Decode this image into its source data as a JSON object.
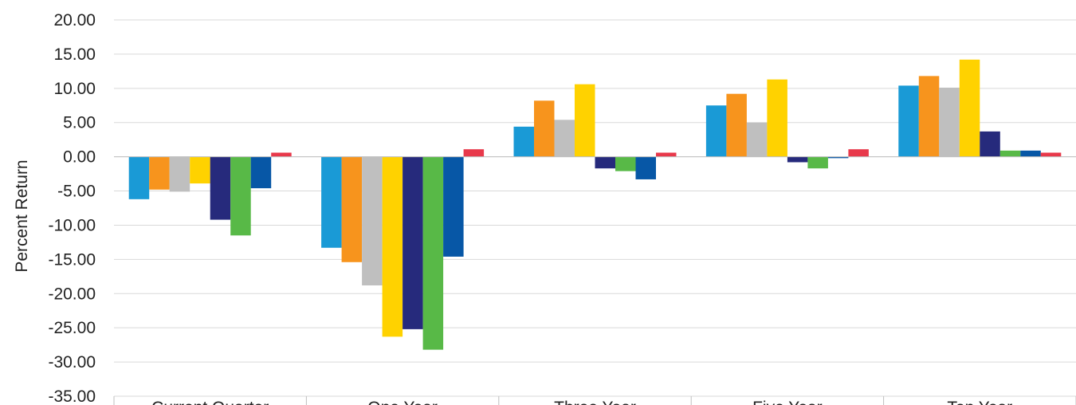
{
  "chart_data": {
    "type": "bar",
    "ylabel": "Percent Return",
    "ylim": [
      -35,
      20
    ],
    "ytick_step": 5,
    "ytick_decimals": 2,
    "grid": true,
    "categories": [
      "Current Quarter",
      "One Year",
      "Three Year",
      "Five Year",
      "Ten Year"
    ],
    "series": [
      {
        "color": "#1a9ad6",
        "values": [
          -6.2,
          -13.3,
          4.4,
          7.5,
          10.4
        ]
      },
      {
        "color": "#f7941d",
        "values": [
          -4.8,
          -15.4,
          8.2,
          9.2,
          11.8
        ]
      },
      {
        "color": "#bfbfbf",
        "values": [
          -5.1,
          -18.8,
          5.4,
          5.0,
          10.1
        ]
      },
      {
        "color": "#ffd200",
        "values": [
          -3.9,
          -26.3,
          10.6,
          11.3,
          14.2
        ]
      },
      {
        "color": "#262a7c",
        "values": [
          -9.2,
          -25.2,
          -1.7,
          -0.8,
          3.7
        ]
      },
      {
        "color": "#58b947",
        "values": [
          -11.5,
          -28.2,
          -2.1,
          -1.7,
          0.9
        ]
      },
      {
        "color": "#0757a6",
        "values": [
          -4.6,
          -14.6,
          -3.3,
          -0.2,
          0.9
        ]
      },
      {
        "color": "#e8394b",
        "values": [
          0.6,
          1.1,
          0.6,
          1.1,
          0.6
        ]
      }
    ]
  }
}
